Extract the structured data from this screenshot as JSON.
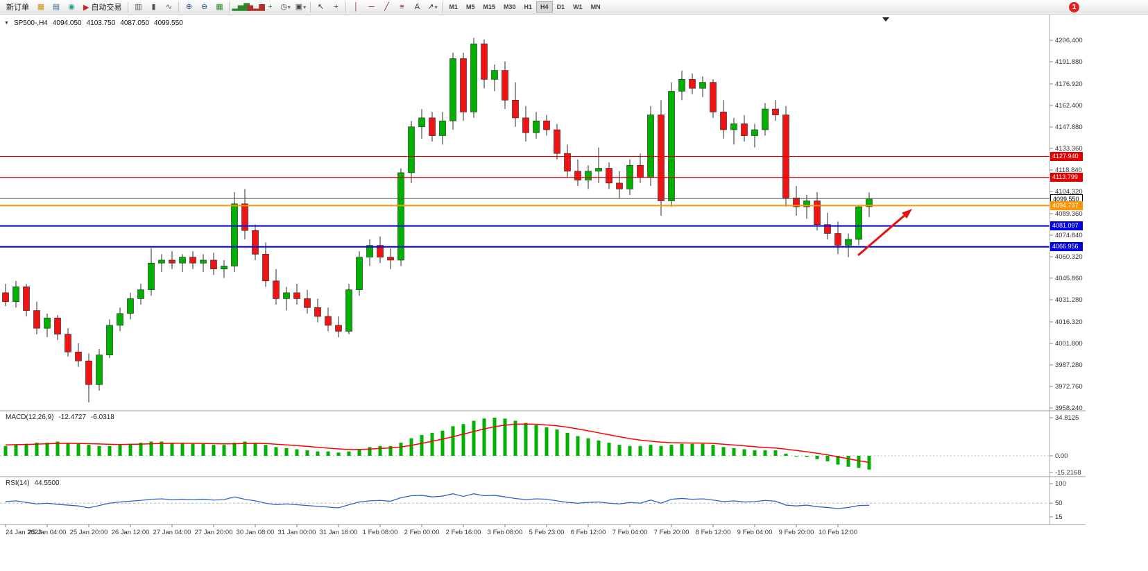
{
  "toolbar": {
    "badge": "1",
    "dropdown_glyph": "▾",
    "groups": [
      {
        "items": [
          {
            "name": "new-order-button",
            "label": "新订单",
            "type": "button"
          },
          {
            "name": "new-chart-icon",
            "glyph": "▦",
            "color": "#c8960c"
          },
          {
            "name": "profiles-icon",
            "glyph": "▤",
            "color": "#3a6ea5"
          },
          {
            "name": "market-watch-icon",
            "glyph": "◉",
            "color": "#2a9d8f"
          },
          {
            "name": "autotrading-button",
            "label": "自动交易",
            "glyph": "▶",
            "color": "#d22222",
            "type": "icon-button"
          }
        ]
      },
      {
        "items": [
          {
            "name": "bar-chart-icon",
            "glyph": "▥",
            "color": "#555555"
          },
          {
            "name": "candlestick-chart-icon",
            "glyph": "▮",
            "color": "#555555"
          },
          {
            "name": "line-chart-icon",
            "glyph": "∿",
            "color": "#555555"
          }
        ]
      },
      {
        "items": [
          {
            "name": "zoom-in-icon",
            "glyph": "⊕",
            "color": "#1f4e8c"
          },
          {
            "name": "zoom-out-icon",
            "glyph": "⊖",
            "color": "#1f4e8c"
          },
          {
            "name": "tile-windows-icon",
            "glyph": "▦",
            "color": "#2a8a2a"
          }
        ]
      },
      {
        "items": [
          {
            "name": "indicators-icon",
            "glyph": "▂▅▇",
            "color": "#2a8a2a"
          },
          {
            "name": "indicator-windows-icon",
            "glyph": "▅▂▆",
            "color": "#b03030"
          },
          {
            "name": "add-indicator-icon",
            "glyph": "+",
            "color": "#1a9a1a"
          },
          {
            "name": "periods-icon",
            "glyph": "◷",
            "color": "#444444",
            "dropdown": true
          },
          {
            "name": "templates-icon",
            "glyph": "▣",
            "color": "#444444",
            "dropdown": true
          }
        ]
      },
      {
        "items": [
          {
            "name": "cursor-icon",
            "glyph": "↖",
            "color": "#333333"
          },
          {
            "name": "crosshair-icon",
            "glyph": "+",
            "color": "#333333"
          }
        ]
      },
      {
        "items": [
          {
            "name": "vertical-line-icon",
            "glyph": "│",
            "color": "#8b2222"
          },
          {
            "name": "horizontal-line-icon",
            "glyph": "─",
            "color": "#8b2222"
          },
          {
            "name": "trendline-icon",
            "glyph": "╱",
            "color": "#8b2222"
          },
          {
            "name": "fibonacci-icon",
            "glyph": "≡",
            "color": "#8b2222"
          },
          {
            "name": "text-tool-icon",
            "glyph": "A",
            "color": "#333333"
          },
          {
            "name": "arrows-tool-icon",
            "glyph": "↗",
            "color": "#333333",
            "dropdown": true
          }
        ]
      },
      {
        "timeframes": true,
        "items": [
          {
            "name": "timeframe-m1",
            "label": "M1"
          },
          {
            "name": "timeframe-m5",
            "label": "M5"
          },
          {
            "name": "timeframe-m15",
            "label": "M15"
          },
          {
            "name": "timeframe-m30",
            "label": "M30"
          },
          {
            "name": "timeframe-h1",
            "label": "H1"
          },
          {
            "name": "timeframe-h4",
            "label": "H4",
            "active": true
          },
          {
            "name": "timeframe-d1",
            "label": "D1"
          },
          {
            "name": "timeframe-w1",
            "label": "W1"
          },
          {
            "name": "timeframe-mn",
            "label": "MN"
          }
        ]
      }
    ]
  },
  "chart": {
    "symbol_row": {
      "caret": "▼",
      "symbol": "SP500-,H4",
      "open": "4094.050",
      "high": "4103.750",
      "low": "4087.050",
      "close": "4099.550"
    },
    "price_axis_labels": [
      "4206.400",
      "4191.880",
      "4176.920",
      "4162.400",
      "4147.880",
      "4133.360",
      "4118.840",
      "4104.320",
      "4089.360",
      "4074.840",
      "4060.320",
      "4045.860",
      "4031.280",
      "4016.320",
      "4001.800",
      "3987.280",
      "3972.760",
      "3958.240"
    ],
    "h_lines": [
      {
        "name": "resistance-line-1",
        "price": 4127.94,
        "label": "4127.940",
        "color": "#e00000",
        "tag_bg": "#e00000",
        "tag_fg": "#ffffff",
        "width": 1.2
      },
      {
        "name": "resistance-line-2",
        "price": 4113.799,
        "label": "4113.799",
        "color": "#e00000",
        "tag_bg": "#e00000",
        "tag_fg": "#ffffff",
        "width": 1.2
      },
      {
        "name": "current-price-line",
        "price": 4099.55,
        "label": "4099.550",
        "color": "#555555",
        "tag_bg": "#ffffff",
        "tag_fg": "#000000",
        "width": 1,
        "outlined": true
      },
      {
        "name": "orange-level-line",
        "price": 4094.797,
        "label": "4094.797",
        "color": "#ff9500",
        "tag_bg": "#ff9500",
        "tag_fg": "#ffffff",
        "width": 2
      },
      {
        "name": "support-line-1",
        "price": 4081.097,
        "label": "4081.097",
        "color": "#0000e0",
        "tag_bg": "#0000e0",
        "tag_fg": "#ffffff",
        "width": 2
      },
      {
        "name": "support-line-2",
        "price": 4066.956,
        "label": "4066.956",
        "color": "#0000e0",
        "tag_bg": "#0000e0",
        "tag_fg": "#ffffff",
        "width": 2
      }
    ],
    "arrow": {
      "color": "#e81010"
    },
    "colors": {
      "up": "#00b200",
      "down": "#f01414",
      "wick": "#2a2a2a",
      "macd_hist": "#00b200",
      "macd_signal": "#ff0000",
      "rsi": "#2e64c8"
    }
  },
  "chart_data": {
    "type": "candlestick",
    "title": "SP500- H4",
    "symbol": "SP500-",
    "timeframe": "H4",
    "y_min": 3958.24,
    "y_max": 4206.4,
    "x_labels": [
      "24 Jan 2023",
      "25 Jan 04:00",
      "25 Jan 20:00",
      "26 Jan 12:00",
      "27 Jan 04:00",
      "27 Jan 20:00",
      "30 Jan 08:00",
      "31 Jan 00:00",
      "31 Jan 16:00",
      "1 Feb 08:00",
      "2 Feb 00:00",
      "2 Feb 16:00",
      "3 Feb 08:00",
      "5 Feb 23:00",
      "6 Feb 12:00",
      "7 Feb 04:00",
      "7 Feb 20:00",
      "8 Feb 12:00",
      "9 Feb 04:00",
      "9 Feb 20:00",
      "10 Feb 12:00"
    ],
    "candles": [
      [
        4036,
        4042,
        4027,
        4030
      ],
      [
        4030,
        4044,
        4026,
        4040
      ],
      [
        4040,
        4042,
        4020,
        4024
      ],
      [
        4024,
        4030,
        4008,
        4012
      ],
      [
        4012,
        4022,
        4006,
        4019
      ],
      [
        4019,
        4021,
        4004,
        4008
      ],
      [
        4008,
        4012,
        3993,
        3996
      ],
      [
        3996,
        4002,
        3986,
        3990
      ],
      [
        3990,
        3995,
        3962,
        3974
      ],
      [
        3974,
        3998,
        3970,
        3994
      ],
      [
        3994,
        4018,
        3992,
        4014
      ],
      [
        4014,
        4026,
        4010,
        4022
      ],
      [
        4022,
        4036,
        4018,
        4032
      ],
      [
        4032,
        4042,
        4028,
        4038
      ],
      [
        4038,
        4066,
        4034,
        4056
      ],
      [
        4056,
        4062,
        4050,
        4058
      ],
      [
        4058,
        4064,
        4052,
        4056
      ],
      [
        4056,
        4062,
        4050,
        4060
      ],
      [
        4060,
        4064,
        4052,
        4056
      ],
      [
        4056,
        4062,
        4050,
        4058
      ],
      [
        4058,
        4063,
        4048,
        4052
      ],
      [
        4052,
        4058,
        4046,
        4054
      ],
      [
        4054,
        4104,
        4050,
        4096
      ],
      [
        4096,
        4106,
        4072,
        4078
      ],
      [
        4078,
        4082,
        4058,
        4062
      ],
      [
        4062,
        4070,
        4040,
        4044
      ],
      [
        4044,
        4052,
        4028,
        4032
      ],
      [
        4032,
        4040,
        4024,
        4036
      ],
      [
        4036,
        4042,
        4028,
        4032
      ],
      [
        4032,
        4038,
        4022,
        4026
      ],
      [
        4026,
        4032,
        4016,
        4020
      ],
      [
        4020,
        4026,
        4010,
        4014
      ],
      [
        4014,
        4020,
        4006,
        4010
      ],
      [
        4010,
        4042,
        4008,
        4038
      ],
      [
        4038,
        4064,
        4034,
        4060
      ],
      [
        4060,
        4072,
        4054,
        4068
      ],
      [
        4068,
        4074,
        4056,
        4060
      ],
      [
        4060,
        4066,
        4052,
        4058
      ],
      [
        4058,
        4120,
        4054,
        4117
      ],
      [
        4117,
        4152,
        4110,
        4148
      ],
      [
        4148,
        4160,
        4140,
        4154
      ],
      [
        4154,
        4158,
        4138,
        4142
      ],
      [
        4142,
        4158,
        4136,
        4152
      ],
      [
        4152,
        4198,
        4146,
        4194
      ],
      [
        4194,
        4198,
        4152,
        4158
      ],
      [
        4158,
        4208,
        4154,
        4204
      ],
      [
        4204,
        4207,
        4174,
        4180
      ],
      [
        4180,
        4190,
        4172,
        4186
      ],
      [
        4186,
        4192,
        4160,
        4166
      ],
      [
        4166,
        4178,
        4148,
        4154
      ],
      [
        4154,
        4162,
        4138,
        4144
      ],
      [
        4144,
        4158,
        4140,
        4152
      ],
      [
        4152,
        4156,
        4142,
        4146
      ],
      [
        4146,
        4150,
        4126,
        4130
      ],
      [
        4130,
        4136,
        4114,
        4118
      ],
      [
        4118,
        4126,
        4108,
        4112
      ],
      [
        4112,
        4122,
        4106,
        4118
      ],
      [
        4118,
        4134,
        4110,
        4120
      ],
      [
        4120,
        4124,
        4106,
        4110
      ],
      [
        4110,
        4118,
        4100,
        4106
      ],
      [
        4106,
        4126,
        4102,
        4122
      ],
      [
        4122,
        4130,
        4110,
        4114
      ],
      [
        4114,
        4162,
        4108,
        4156
      ],
      [
        4156,
        4166,
        4088,
        4098
      ],
      [
        4098,
        4178,
        4094,
        4172
      ],
      [
        4172,
        4186,
        4166,
        4180
      ],
      [
        4180,
        4184,
        4170,
        4174
      ],
      [
        4174,
        4182,
        4168,
        4178
      ],
      [
        4178,
        4180,
        4154,
        4158
      ],
      [
        4158,
        4166,
        4140,
        4146
      ],
      [
        4146,
        4154,
        4136,
        4150
      ],
      [
        4150,
        4156,
        4138,
        4142
      ],
      [
        4142,
        4150,
        4134,
        4146
      ],
      [
        4146,
        4164,
        4142,
        4160
      ],
      [
        4160,
        4166,
        4152,
        4156
      ],
      [
        4156,
        4162,
        4094,
        4100
      ],
      [
        4100,
        4108,
        4088,
        4094
      ],
      [
        4094,
        4102,
        4086,
        4098
      ],
      [
        4098,
        4104,
        4078,
        4082
      ],
      [
        4082,
        4090,
        4072,
        4076
      ],
      [
        4076,
        4084,
        4062,
        4068
      ],
      [
        4068,
        4076,
        4060,
        4072
      ],
      [
        4072,
        4095,
        4068,
        4094
      ],
      [
        4094.05,
        4103.75,
        4087.05,
        4099.55
      ]
    ],
    "indicators": [
      {
        "type": "macd",
        "label": "MACD(12,26,9)",
        "macd_value": "-12.4727",
        "signal_value": "-6.0318",
        "scale_labels": [
          "34.8125",
          "0.00",
          "-15.2168"
        ],
        "histogram": [
          9,
          10,
          11,
          12,
          12,
          13,
          12,
          11,
          10,
          9,
          9,
          10,
          11,
          12,
          13,
          13,
          12,
          12,
          11,
          11,
          10,
          10,
          12,
          13,
          12,
          10,
          8,
          7,
          6,
          5,
          4,
          4,
          3,
          4,
          6,
          8,
          9,
          9,
          12,
          16,
          19,
          21,
          23,
          27,
          29,
          32,
          34,
          34.8,
          34,
          32,
          30,
          28,
          26,
          24,
          21,
          18,
          16,
          14,
          12,
          10,
          9,
          9,
          10,
          9,
          10,
          11,
          11,
          11,
          10,
          8,
          7,
          6,
          5,
          5,
          5,
          2,
          0,
          -1,
          -3,
          -5,
          -8,
          -10,
          -11,
          -12.5
        ],
        "signal_line": [
          10,
          10.2,
          10.4,
          10.7,
          11,
          11.3,
          11.4,
          11.3,
          11.1,
          10.8,
          10.5,
          10.4,
          10.5,
          10.7,
          11,
          11.3,
          11.4,
          11.5,
          11.4,
          11.3,
          11.1,
          10.9,
          11,
          11.3,
          11.4,
          11.2,
          10.6,
          10,
          9.3,
          8.6,
          7.8,
          7,
          6.3,
          5.8,
          5.8,
          6.2,
          6.7,
          7.2,
          8.1,
          9.6,
          11.4,
          13.3,
          15.2,
          17.5,
          19.8,
          22.2,
          24.5,
          26.5,
          28,
          28.8,
          29,
          28.8,
          28.2,
          27.4,
          26.1,
          24.5,
          22.8,
          21,
          19.2,
          17.4,
          15.7,
          14.3,
          13.4,
          12.5,
          12,
          11.8,
          11.7,
          11.6,
          11.3,
          10.6,
          9.9,
          9.1,
          8.3,
          7.6,
          7.1,
          6.1,
          4.9,
          3.7,
          2.4,
          0.9,
          -0.9,
          -2.7,
          -4.4,
          -6.03
        ]
      },
      {
        "type": "rsi",
        "label": "RSI(14)",
        "value": "44.5500",
        "scale_labels": [
          "100",
          "50",
          "15"
        ],
        "levels": [
          50
        ],
        "series": [
          54,
          56,
          52,
          48,
          50,
          47,
          45,
          43,
          38,
          44,
          50,
          53,
          55,
          57,
          60,
          61,
          59,
          60,
          59,
          60,
          58,
          59,
          66,
          60,
          56,
          50,
          46,
          48,
          46,
          44,
          42,
          40,
          38,
          46,
          53,
          56,
          57,
          55,
          64,
          69,
          70,
          66,
          68,
          74,
          67,
          74,
          69,
          70,
          66,
          62,
          59,
          61,
          60,
          56,
          52,
          50,
          52,
          53,
          50,
          48,
          52,
          50,
          58,
          50,
          60,
          62,
          60,
          61,
          58,
          54,
          56,
          53,
          54,
          57,
          55,
          45,
          43,
          45,
          41,
          39,
          36,
          39,
          44,
          44.55
        ]
      }
    ]
  }
}
